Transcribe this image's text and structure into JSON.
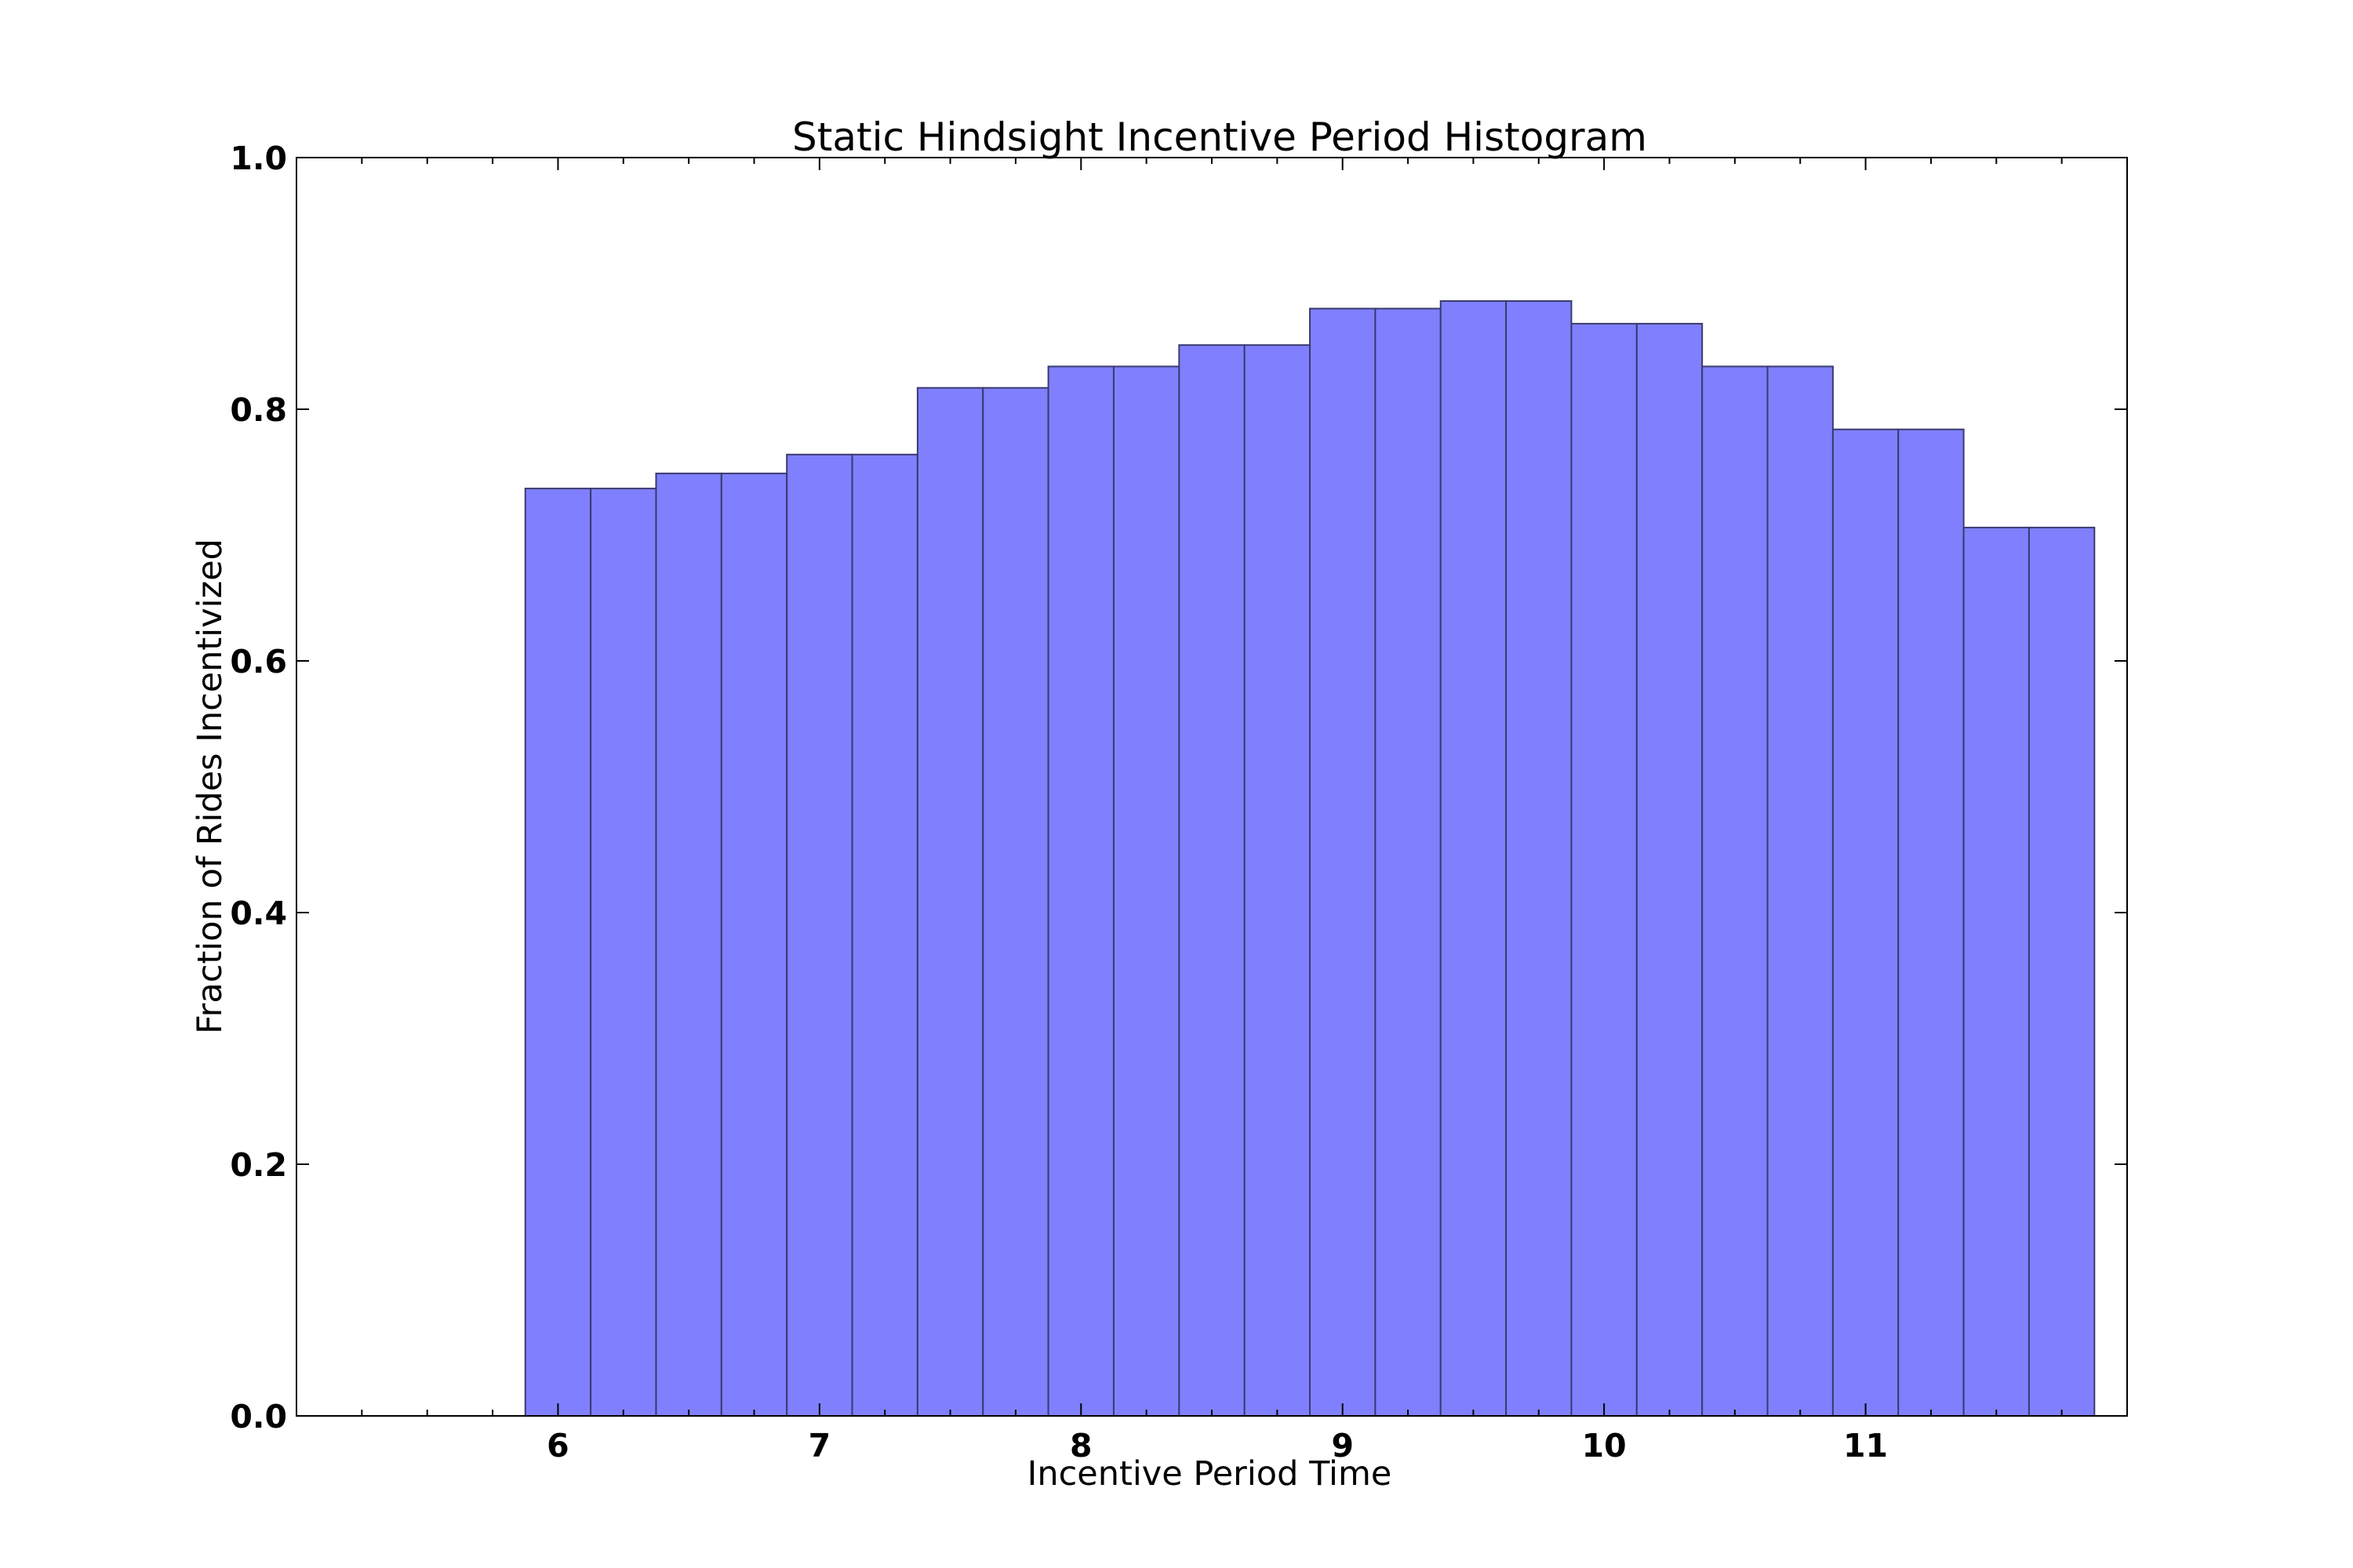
{
  "chart_data": {
    "type": "bar",
    "title": "Static Hindsight Incentive Period Histogram",
    "xlabel": "Incentive Period Time",
    "ylabel": "Fraction of Rides Incentivized",
    "xlim": [
      5.0,
      12.0
    ],
    "ylim": [
      0.0,
      1.0
    ],
    "grid": false,
    "legend": "none",
    "bar_color": "#8080ff",
    "edge_color": "#3a3a6e",
    "x_ticks": [
      6,
      7,
      8,
      9,
      10,
      11
    ],
    "x_tick_labels": [
      "6",
      "7",
      "8",
      "9",
      "10",
      "11"
    ],
    "y_ticks": [
      0.0,
      0.2,
      0.4,
      0.6,
      0.8,
      1.0
    ],
    "y_tick_labels": [
      "0.0",
      "0.2",
      "0.4",
      "0.6",
      "0.8",
      "1.0"
    ],
    "bin_width": 0.25,
    "bin_starts": [
      5.875,
      6.125,
      6.375,
      6.625,
      6.875,
      7.125,
      7.375,
      7.625,
      7.875,
      8.125,
      8.375,
      8.625,
      8.875,
      9.125,
      9.375,
      9.625,
      9.875,
      10.125,
      10.375,
      10.625,
      10.875,
      11.125,
      11.375,
      11.625
    ],
    "values": [
      0.737,
      0.737,
      0.749,
      0.749,
      0.764,
      0.764,
      0.817,
      0.817,
      0.834,
      0.834,
      0.851,
      0.851,
      0.88,
      0.88,
      0.886,
      0.886,
      0.868,
      0.868,
      0.834,
      0.834,
      0.784,
      0.784,
      0.706,
      0.706
    ]
  }
}
